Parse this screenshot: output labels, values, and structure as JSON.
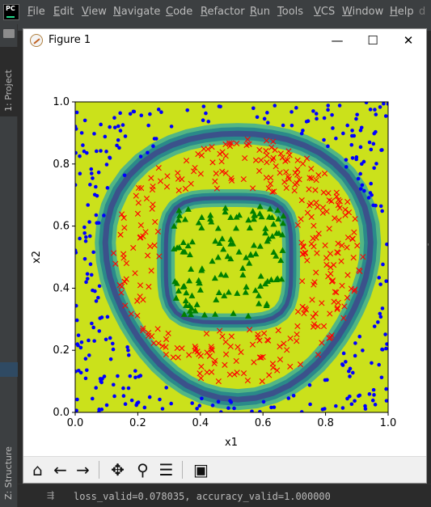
{
  "ide": {
    "logo_text": "PC",
    "menu": [
      "File",
      "Edit",
      "View",
      "Navigate",
      "Code",
      "Refactor",
      "Run",
      "Tools",
      "VCS",
      "Window",
      "Help"
    ],
    "title_overflow": "d",
    "left_tabs": {
      "project": "1: Project",
      "structure": "Z: Structure"
    },
    "right_glyphs": "'",
    "console_line": "loss_valid=0.078035, accuracy_valid=1.000000"
  },
  "figure": {
    "window_title": "Figure 1",
    "window_buttons": {
      "minimize": "—",
      "maximize": "☐",
      "close": "✕"
    },
    "toolbar_icons": [
      "home-icon",
      "back-arrow-icon",
      "forward-arrow-icon",
      "pan-icon",
      "zoom-icon",
      "configure-subplots-icon",
      "save-icon"
    ]
  },
  "chart_data": {
    "type": "scatter",
    "xlabel": "x1",
    "ylabel": "x2",
    "xlim": [
      0.0,
      1.0
    ],
    "ylim": [
      0.0,
      1.0
    ],
    "x_ticks": [
      "0.0",
      "0.2",
      "0.4",
      "0.6",
      "0.8",
      "1.0"
    ],
    "y_ticks": [
      "0.0",
      "0.2",
      "0.4",
      "0.6",
      "0.8",
      "1.0"
    ],
    "background": "decision-boundary contour, yellow-green regions with teal/blue boundary bands",
    "classes": [
      {
        "marker": "circle",
        "color": "#0000ff",
        "region": "outside outer ring"
      },
      {
        "marker": "x",
        "color": "#ff0000",
        "region": "ring between boundaries"
      },
      {
        "marker": "triangle",
        "color": "#008000",
        "region": "inner square region"
      }
    ],
    "colors": {
      "fill": "#cbe11b",
      "band_outer": "#52b684",
      "band_mid": "#2a8a8a",
      "band_inner": "#3b528b"
    }
  }
}
